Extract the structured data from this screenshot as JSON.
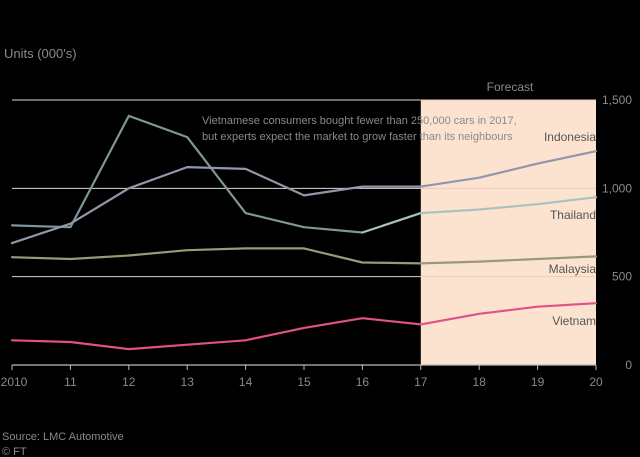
{
  "unit_label": "Units (000's)",
  "forecast_label": "Forecast",
  "annotation": [
    "Vietnamese consumers bought fewer than 250,000 cars in 2017,",
    "but experts expect the market to grow faster than its neighbours"
  ],
  "source": "Source: LMC Automotive",
  "credit": "© FT",
  "colors": {
    "background": "#000000",
    "text": "#8a8a8a",
    "gridline": "#d8d8d8",
    "forecast_band": "#fce3d0",
    "indonesia": "#8f97a8",
    "thailand": "#a9c2c0",
    "malaysia": "#9a9a78",
    "vietnam": "#e0508a",
    "extra": "#7f9596"
  },
  "chart_data": {
    "type": "line",
    "title": "",
    "xlabel": "",
    "ylabel": "Units (000's)",
    "categories": [
      "2010",
      "11",
      "12",
      "13",
      "14",
      "15",
      "16",
      "17",
      "18",
      "19",
      "20"
    ],
    "x": [
      2010,
      2011,
      2012,
      2013,
      2014,
      2015,
      2016,
      2017,
      2018,
      2019,
      2020
    ],
    "xlim": [
      2010,
      2020
    ],
    "ylim": [
      0,
      1500
    ],
    "yticks": [
      0,
      500,
      1000,
      1500
    ],
    "ytick_labels": [
      "0",
      "500",
      "1,000",
      "1,500"
    ],
    "forecast_start": 2017,
    "forecast_end": 2020,
    "series": [
      {
        "name": "Indonesia",
        "key": "indonesia",
        "values": [
          690,
          800,
          1000,
          1120,
          1110,
          960,
          1010,
          1010,
          1060,
          1140,
          1210
        ]
      },
      {
        "name": "",
        "key": "extra",
        "values": [
          790,
          780,
          1410,
          1290,
          860,
          780,
          750,
          null,
          null,
          null,
          null
        ]
      },
      {
        "name": "Thailand",
        "key": "thailand",
        "values": [
          null,
          null,
          null,
          null,
          null,
          null,
          750,
          860,
          880,
          910,
          950
        ]
      },
      {
        "name": "Malaysia",
        "key": "malaysia",
        "values": [
          610,
          600,
          620,
          650,
          660,
          660,
          580,
          575,
          585,
          600,
          615
        ]
      },
      {
        "name": "Vietnam",
        "key": "vietnam",
        "values": [
          140,
          130,
          90,
          115,
          140,
          210,
          265,
          230,
          290,
          330,
          350
        ]
      }
    ]
  }
}
